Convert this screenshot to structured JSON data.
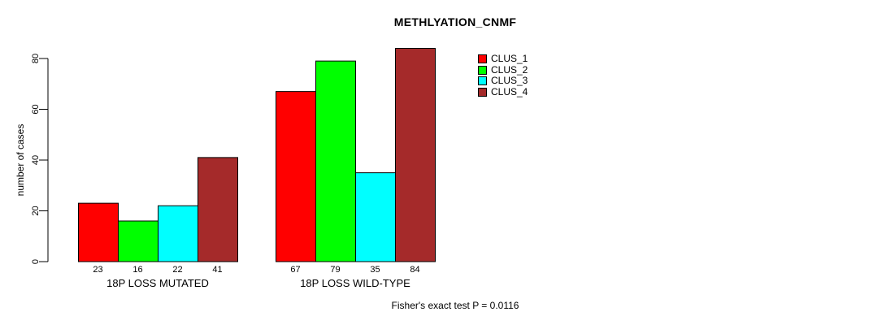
{
  "chart_data": {
    "type": "bar",
    "title": "METHLYATION_CNMF",
    "xlabel": "",
    "ylabel": "number of cases",
    "ylim": [
      0,
      84
    ],
    "yticks": [
      0,
      20,
      40,
      60,
      80
    ],
    "grid": false,
    "legend_position": "top-right",
    "bar_value_labels_shown": true,
    "categories": [
      "18P LOSS MUTATED",
      "18P LOSS WILD-TYPE"
    ],
    "series": [
      {
        "name": "CLUS_1",
        "color": "#FF0000",
        "values": [
          23,
          67
        ]
      },
      {
        "name": "CLUS_2",
        "color": "#00FF00",
        "values": [
          16,
          79
        ]
      },
      {
        "name": "CLUS_3",
        "color": "#00FFFF",
        "values": [
          22,
          35
        ]
      },
      {
        "name": "CLUS_4",
        "color": "#A52A2A",
        "values": [
          41,
          84
        ]
      }
    ],
    "annotation": "Fisher's exact test P = 0.0116",
    "bar_border_color": "#000000",
    "axis_color": "#000000"
  }
}
